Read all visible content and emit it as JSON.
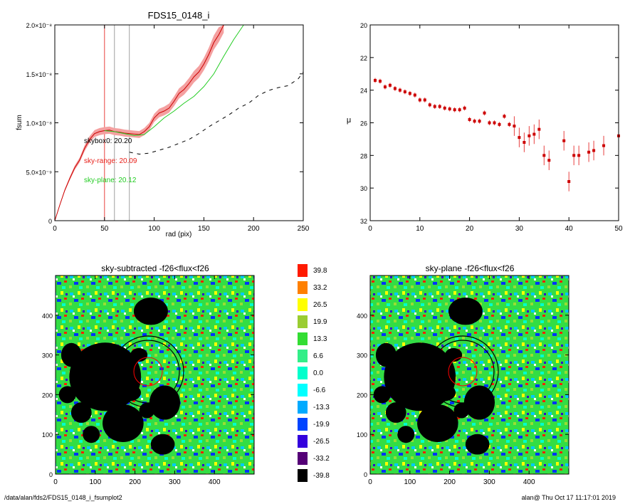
{
  "chart_data": [
    {
      "type": "line",
      "title": "FDS15_0148_i",
      "xlabel": "rad (pix)",
      "ylabel": "fsum",
      "xlim": [
        0,
        250
      ],
      "ylim": [
        0,
        2e-08
      ],
      "xticks": [
        "0",
        "50",
        "100",
        "150",
        "200",
        "250"
      ],
      "yticks": [
        "0",
        "5.0×10⁻⁹",
        "1.0×10⁻⁸",
        "1.5×10⁻⁸",
        "2.0×10⁻⁸"
      ],
      "vlines": [
        {
          "x": 50,
          "color": "#e8423f"
        },
        {
          "x": 60,
          "color": "#a0a0a0"
        },
        {
          "x": 75,
          "color": "#a0a0a0"
        }
      ],
      "annotations": [
        {
          "text": "skybox0: 20.20",
          "color": "#000000"
        },
        {
          "text": "sky-range: 20.09",
          "color": "#e8201a"
        },
        {
          "text": "sky-plane: 20.12",
          "color": "#22cc22"
        }
      ],
      "series": [
        {
          "x": [
            0,
            5,
            10,
            15,
            20,
            25,
            30,
            35,
            40,
            45,
            50,
            55,
            60,
            65,
            70,
            75,
            80,
            85,
            90,
            95,
            100,
            105,
            110,
            115,
            120,
            125,
            130,
            135,
            140,
            145,
            150,
            155,
            160,
            165,
            170
          ],
          "y": [
            0,
            1.6e-09,
            3.1e-09,
            4.3e-09,
            5.4e-09,
            6.2e-09,
            7.4e-09,
            8.3e-09,
            8.9e-09,
            9.1e-09,
            9.2e-09,
            9.25e-09,
            9.1e-09,
            9.05e-09,
            8.95e-09,
            8.9e-09,
            8.85e-09,
            8.8e-09,
            9.1e-09,
            9.6e-09,
            1.05e-08,
            1.1e-08,
            1.12e-08,
            1.15e-08,
            1.22e-08,
            1.3e-08,
            1.34e-08,
            1.4e-08,
            1.47e-08,
            1.52e-08,
            1.6e-08,
            1.7e-08,
            1.82e-08,
            1.9e-08,
            2e-08
          ],
          "color": "#cc0000",
          "band_color": "#f4a0a0"
        },
        {
          "x": [
            50,
            60,
            70,
            80,
            90,
            100,
            110,
            120,
            130,
            140,
            150,
            160,
            170,
            180,
            190
          ],
          "y": [
            9.2e-09,
            9.1e-09,
            8.9e-09,
            8.7e-09,
            8.8e-09,
            9.6e-09,
            1.05e-08,
            1.12e-08,
            1.2e-08,
            1.27e-08,
            1.37e-08,
            1.5e-08,
            1.68e-08,
            1.85e-08,
            2e-08
          ],
          "color": "#22cc22"
        },
        {
          "x": [
            75,
            85,
            95,
            105,
            115,
            125,
            135,
            145,
            155,
            165,
            175,
            185,
            195,
            205,
            215,
            225,
            235,
            245,
            250
          ],
          "y": [
            7e-09,
            6.8e-09,
            6.9e-09,
            7.2e-09,
            7.5e-09,
            7.9e-09,
            8.3e-09,
            8.9e-09,
            9.6e-09,
            1.02e-08,
            1.08e-08,
            1.15e-08,
            1.2e-08,
            1.28e-08,
            1.33e-08,
            1.36e-08,
            1.38e-08,
            1.45e-08,
            1.52e-08
          ],
          "color": "#000000",
          "dash": true
        }
      ]
    },
    {
      "type": "scatter",
      "title": "",
      "xlabel": "",
      "ylabel": "μ",
      "xlim": [
        0,
        50
      ],
      "ylim": [
        32,
        20
      ],
      "xticks": [
        "0",
        "10",
        "20",
        "30",
        "40",
        "50"
      ],
      "yticks": [
        "20",
        "22",
        "24",
        "26",
        "28",
        "30",
        "32"
      ],
      "series": [
        {
          "x": [
            1,
            2,
            3,
            4,
            5,
            6,
            7,
            8,
            9,
            10,
            11,
            12,
            13,
            14,
            15,
            16,
            17,
            18,
            19,
            20,
            21,
            22,
            23,
            24,
            25,
            26,
            27,
            28,
            29,
            30,
            31,
            32,
            33,
            34,
            35,
            36,
            39,
            40,
            41,
            42,
            44,
            45,
            47,
            50
          ],
          "y": [
            23.4,
            23.45,
            23.8,
            23.7,
            23.9,
            24.0,
            24.1,
            24.2,
            24.3,
            24.6,
            24.6,
            24.9,
            25.0,
            25.0,
            25.1,
            25.15,
            25.2,
            25.2,
            25.1,
            25.8,
            25.9,
            25.9,
            25.4,
            26.0,
            26.0,
            26.1,
            25.6,
            26.1,
            26.2,
            26.9,
            27.2,
            26.8,
            26.7,
            26.4,
            28.0,
            28.3,
            27.1,
            29.6,
            28.0,
            28.0,
            27.8,
            27.7,
            27.4,
            26.8
          ],
          "color": "#cc0000"
        }
      ]
    },
    {
      "type": "heatmap",
      "title": "sky-subtracted -f26<flux<f26",
      "xlim": [
        0,
        500
      ],
      "ylim": [
        0,
        500
      ],
      "xticks": [
        "0",
        "100",
        "200",
        "300",
        "400"
      ],
      "yticks": [
        "0",
        "100",
        "200",
        "300",
        "400"
      ]
    },
    {
      "type": "heatmap",
      "title": "sky-plane -f26<flux<f26",
      "xlim": [
        0,
        500
      ],
      "ylim": [
        0,
        500
      ],
      "xticks": [
        "0",
        "100",
        "200",
        "300",
        "400"
      ],
      "yticks": [
        "0",
        "100",
        "200",
        "300",
        "400"
      ]
    }
  ],
  "colorbar": {
    "labels": [
      "39.8",
      "33.2",
      "26.5",
      "19.9",
      "13.3",
      "6.6",
      "0.0",
      "-6.6",
      "-13.3",
      "-19.9",
      "-26.5",
      "-33.2",
      "-39.8"
    ],
    "colors": [
      "#ff1a00",
      "#ff8000",
      "#ffff00",
      "#9acd32",
      "#33dd33",
      "#33ee88",
      "#00ffcc",
      "#00ffff",
      "#00aaff",
      "#0044ff",
      "#3300dd",
      "#550077",
      "#000000"
    ]
  },
  "footer": {
    "left": "/data/alan/fds2/FDS15_0148_i_fsumplot2",
    "right": "alan@  Thu Oct 17 11:17:01 2019"
  }
}
